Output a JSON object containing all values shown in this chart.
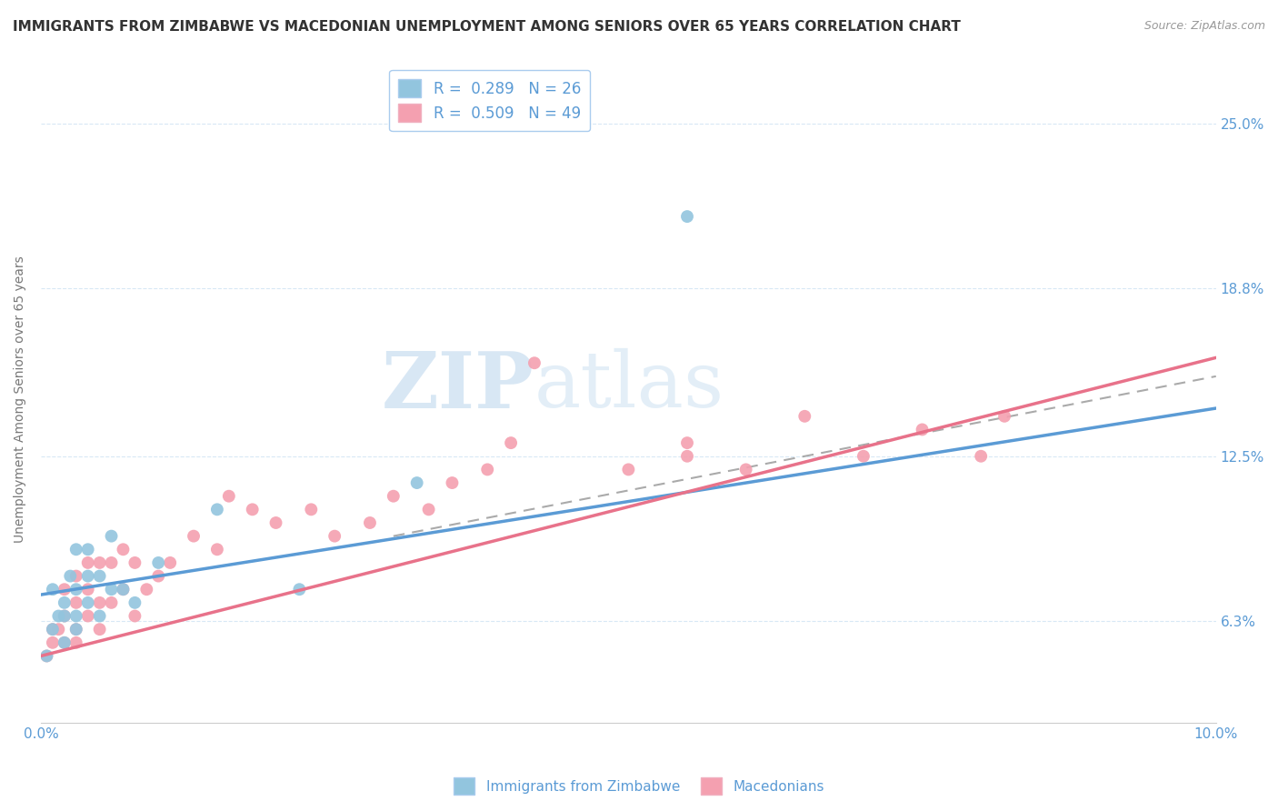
{
  "title": "IMMIGRANTS FROM ZIMBABWE VS MACEDONIAN UNEMPLOYMENT AMONG SENIORS OVER 65 YEARS CORRELATION CHART",
  "source": "Source: ZipAtlas.com",
  "xlabel": "",
  "ylabel": "Unemployment Among Seniors over 65 years",
  "xlim": [
    0.0,
    0.1
  ],
  "ylim": [
    0.025,
    0.268
  ],
  "xticks": [
    0.0,
    0.01,
    0.02,
    0.03,
    0.04,
    0.05,
    0.06,
    0.07,
    0.08,
    0.09,
    0.1
  ],
  "xticklabels": [
    "0.0%",
    "",
    "",
    "",
    "",
    "",
    "",
    "",
    "",
    "",
    "10.0%"
  ],
  "ytick_positions": [
    0.063,
    0.125,
    0.188,
    0.25
  ],
  "ytick_labels": [
    "6.3%",
    "12.5%",
    "18.8%",
    "25.0%"
  ],
  "legend_blue_label": "R =  0.289   N = 26",
  "legend_pink_label": "R =  0.509   N = 49",
  "blue_color": "#92c5de",
  "pink_color": "#f4a0b0",
  "blue_line_color": "#5b9bd5",
  "pink_line_color": "#e8728a",
  "watermark_zip": "ZIP",
  "watermark_atlas": "atlas",
  "blue_scatter_x": [
    0.0005,
    0.001,
    0.001,
    0.0015,
    0.002,
    0.002,
    0.002,
    0.0025,
    0.003,
    0.003,
    0.003,
    0.003,
    0.004,
    0.004,
    0.004,
    0.005,
    0.005,
    0.006,
    0.006,
    0.007,
    0.008,
    0.01,
    0.015,
    0.022,
    0.032,
    0.055
  ],
  "blue_scatter_y": [
    0.05,
    0.06,
    0.075,
    0.065,
    0.055,
    0.065,
    0.07,
    0.08,
    0.06,
    0.065,
    0.075,
    0.09,
    0.07,
    0.08,
    0.09,
    0.065,
    0.08,
    0.075,
    0.095,
    0.075,
    0.07,
    0.085,
    0.105,
    0.075,
    0.115,
    0.215
  ],
  "pink_scatter_x": [
    0.0005,
    0.001,
    0.001,
    0.0015,
    0.002,
    0.002,
    0.002,
    0.003,
    0.003,
    0.003,
    0.003,
    0.004,
    0.004,
    0.004,
    0.005,
    0.005,
    0.005,
    0.006,
    0.006,
    0.007,
    0.007,
    0.008,
    0.008,
    0.009,
    0.01,
    0.011,
    0.013,
    0.015,
    0.016,
    0.018,
    0.02,
    0.023,
    0.025,
    0.028,
    0.03,
    0.033,
    0.035,
    0.038,
    0.04,
    0.042,
    0.05,
    0.055,
    0.06,
    0.065,
    0.07,
    0.075,
    0.08,
    0.082,
    0.055
  ],
  "pink_scatter_y": [
    0.05,
    0.055,
    0.06,
    0.06,
    0.055,
    0.065,
    0.075,
    0.055,
    0.06,
    0.07,
    0.08,
    0.065,
    0.075,
    0.085,
    0.06,
    0.07,
    0.085,
    0.07,
    0.085,
    0.075,
    0.09,
    0.065,
    0.085,
    0.075,
    0.08,
    0.085,
    0.095,
    0.09,
    0.11,
    0.105,
    0.1,
    0.105,
    0.095,
    0.1,
    0.11,
    0.105,
    0.115,
    0.12,
    0.13,
    0.16,
    0.12,
    0.13,
    0.12,
    0.14,
    0.125,
    0.135,
    0.125,
    0.14,
    0.125
  ],
  "blue_line_x0": 0.0,
  "blue_line_y0": 0.073,
  "blue_line_x1": 0.1,
  "blue_line_y1": 0.143,
  "pink_line_x0": 0.0,
  "pink_line_y0": 0.05,
  "pink_line_x1": 0.1,
  "pink_line_y1": 0.162,
  "dash_line_x0": 0.03,
  "dash_line_y0": 0.095,
  "dash_line_x1": 0.1,
  "dash_line_y1": 0.155,
  "background_color": "#ffffff",
  "grid_color": "#d8e8f5",
  "title_fontsize": 11,
  "axis_label_fontsize": 10,
  "tick_fontsize": 11,
  "legend_fontsize": 12
}
